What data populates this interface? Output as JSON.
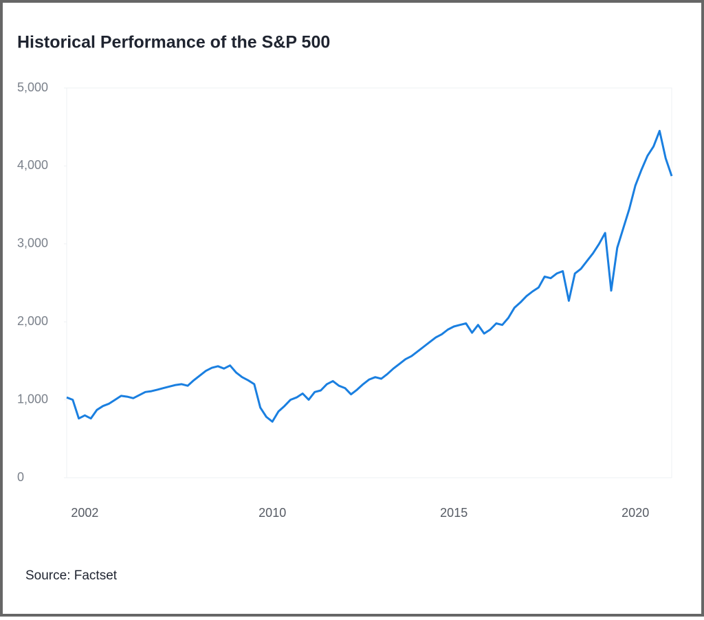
{
  "chart_data": {
    "type": "line",
    "title": "Historical Performance of the S&P 500",
    "source": "Source: Factset",
    "color": "#1a7fe0",
    "ylim": [
      0,
      5000
    ],
    "yticks": [
      0,
      {
        "value": 1000,
        "label": "1,000"
      },
      {
        "value": 2000,
        "label": "2,000"
      },
      {
        "value": 3000,
        "label": "3,000"
      },
      {
        "value": 4000,
        "label": "4,000"
      },
      {
        "value": 5000,
        "label": "5,000"
      }
    ],
    "grid": false,
    "categories": [
      null,
      null,
      null,
      "2002",
      null,
      null,
      null,
      null,
      null,
      null,
      null,
      null,
      null,
      null,
      null,
      null,
      null,
      null,
      null,
      null,
      null,
      null,
      null,
      null,
      null,
      null,
      null,
      null,
      null,
      null,
      null,
      null,
      null,
      null,
      "2010",
      null,
      null,
      null,
      null,
      null,
      null,
      null,
      null,
      null,
      null,
      null,
      null,
      null,
      null,
      null,
      null,
      null,
      null,
      null,
      null,
      null,
      null,
      null,
      null,
      null,
      null,
      null,
      null,
      null,
      "2015",
      null,
      null,
      null,
      null,
      null,
      null,
      null,
      null,
      null,
      null,
      null,
      null,
      null,
      null,
      null,
      null,
      null,
      null,
      null,
      null,
      null,
      null,
      null,
      null,
      null,
      null,
      null,
      null,
      null,
      "2020",
      null,
      null,
      null,
      null,
      null,
      null
    ],
    "values": [
      1030,
      1000,
      760,
      800,
      760,
      870,
      920,
      950,
      1000,
      1050,
      1040,
      1020,
      1060,
      1100,
      1110,
      1130,
      1150,
      1170,
      1190,
      1200,
      1180,
      1250,
      1310,
      1370,
      1410,
      1430,
      1400,
      1440,
      1350,
      1290,
      1250,
      1200,
      900,
      780,
      720,
      850,
      920,
      1000,
      1030,
      1080,
      1000,
      1100,
      1120,
      1200,
      1240,
      1180,
      1150,
      1070,
      1130,
      1200,
      1260,
      1290,
      1270,
      1330,
      1400,
      1460,
      1520,
      1560,
      1620,
      1680,
      1740,
      1800,
      1840,
      1900,
      1940,
      1960,
      1980,
      1860,
      1960,
      1850,
      1900,
      1980,
      1960,
      2050,
      2180,
      2250,
      2330,
      2390,
      2440,
      2580,
      2560,
      2620,
      2650,
      2270,
      2620,
      2680,
      2780,
      2880,
      3000,
      3140,
      2400,
      2950,
      3200,
      3450,
      3750,
      3950,
      4130,
      4250,
      4450,
      4100,
      3870
    ]
  }
}
